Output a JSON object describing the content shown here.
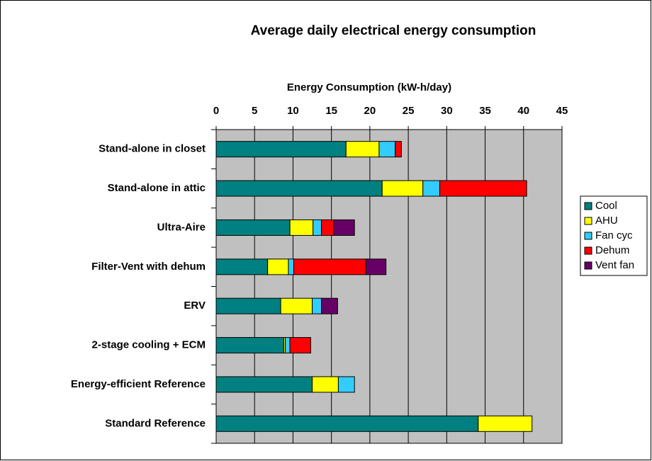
{
  "chart_data": {
    "type": "stacked_barh",
    "title": "Average daily electrical energy consumption",
    "x_label": "Energy Consumption (kW-h/day)",
    "categories": [
      "Stand-alone in closet",
      "Stand-alone in attic",
      "Ultra-Aire",
      "Filter-Vent with dehum",
      "ERV",
      "2-stage cooling + ECM",
      "Energy-efficient Reference",
      "Standard Reference"
    ],
    "series": [
      {
        "name": "Cool",
        "color": "#008080",
        "values": [
          16.9,
          21.6,
          9.6,
          6.7,
          8.4,
          8.8,
          12.5,
          34.1
        ]
      },
      {
        "name": "AHU",
        "color": "#ffff00",
        "values": [
          4.3,
          5.3,
          3.0,
          2.7,
          4.1,
          0.2,
          3.4,
          7.0
        ]
      },
      {
        "name": "Fan cyc",
        "color": "#33ccff",
        "values": [
          2.1,
          2.2,
          1.1,
          0.7,
          1.2,
          0.6,
          2.1,
          0
        ]
      },
      {
        "name": "Dehum",
        "color": "#ff0000",
        "values": [
          0.8,
          11.3,
          1.6,
          9.4,
          0,
          2.7,
          0,
          0
        ]
      },
      {
        "name": "Vent fan",
        "color": "#660066",
        "values": [
          0,
          0,
          2.7,
          2.6,
          2.1,
          0,
          0,
          0
        ]
      }
    ],
    "xlim": [
      0,
      45
    ],
    "xticks": [
      0,
      5,
      10,
      15,
      20,
      25,
      30,
      35,
      40,
      45
    ],
    "grid": true,
    "plot_background": "#c0c0c0",
    "legend": "right"
  }
}
